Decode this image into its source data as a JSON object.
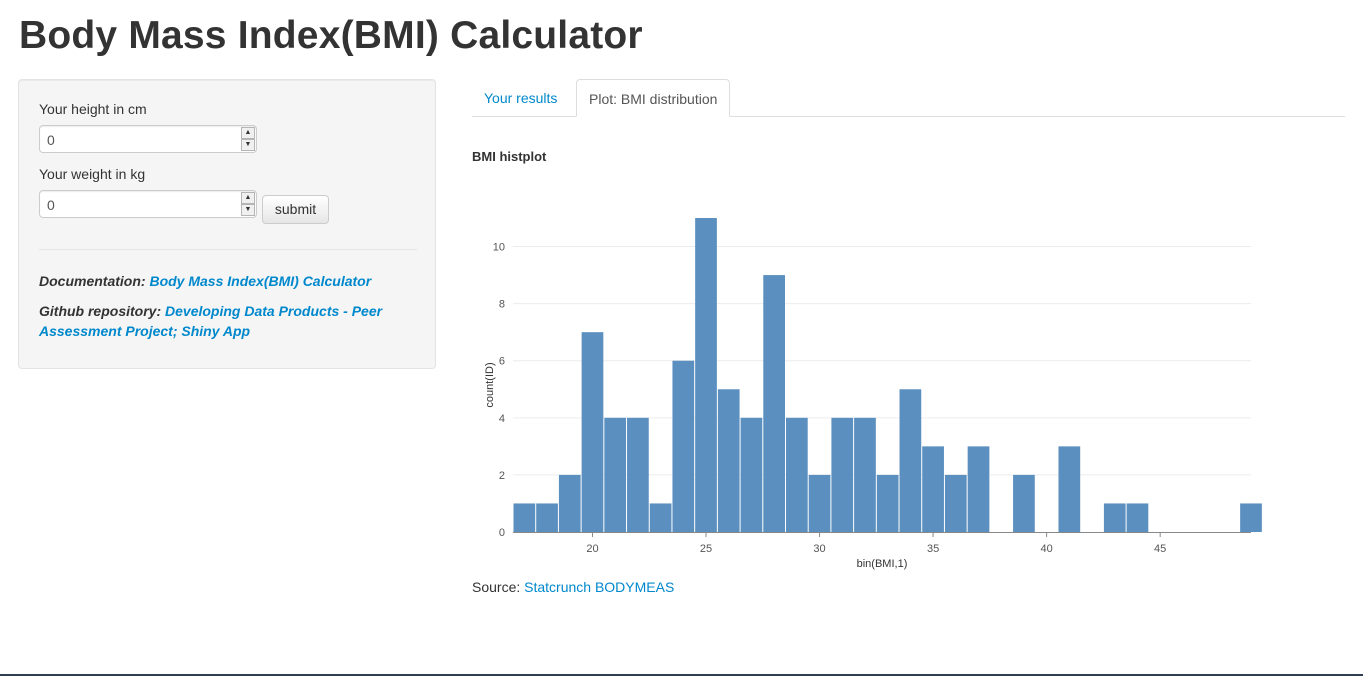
{
  "page": {
    "title": "Body Mass Index(BMI) Calculator"
  },
  "sidebar": {
    "height_label": "Your height in cm",
    "height_value": "0",
    "weight_label": "Your weight in kg",
    "weight_value": "0",
    "submit_label": "submit",
    "doc_prefix": "Documentation:",
    "doc_link": "Body Mass Index(BMI) Calculator",
    "github_prefix": "Github repository:",
    "github_link": "Developing Data Products - Peer Assessment Project; Shiny App"
  },
  "tabs": [
    {
      "label": "Your results",
      "active": false
    },
    {
      "label": "Plot: BMI distribution",
      "active": true
    }
  ],
  "plot": {
    "title": "BMI histplot",
    "source_prefix": "Source:",
    "source_link": "Statcrunch BODYMEAS"
  },
  "chart_data": {
    "type": "bar",
    "xlabel": "bin(BMI,1)",
    "ylabel": "count(ID)",
    "xlim": [
      16.5,
      49
    ],
    "ylim": [
      0,
      11
    ],
    "xticks": [
      20,
      25,
      30,
      35,
      40,
      45
    ],
    "yticks": [
      0,
      2,
      4,
      6,
      8,
      10
    ],
    "bar_color": "#5a8fbf",
    "grid": true,
    "bins": [
      {
        "x": 17,
        "count": 1
      },
      {
        "x": 18,
        "count": 1
      },
      {
        "x": 19,
        "count": 2
      },
      {
        "x": 20,
        "count": 7
      },
      {
        "x": 21,
        "count": 4
      },
      {
        "x": 22,
        "count": 4
      },
      {
        "x": 23,
        "count": 1
      },
      {
        "x": 24,
        "count": 6
      },
      {
        "x": 25,
        "count": 11
      },
      {
        "x": 26,
        "count": 5
      },
      {
        "x": 27,
        "count": 4
      },
      {
        "x": 28,
        "count": 9
      },
      {
        "x": 29,
        "count": 4
      },
      {
        "x": 30,
        "count": 2
      },
      {
        "x": 31,
        "count": 4
      },
      {
        "x": 32,
        "count": 4
      },
      {
        "x": 33,
        "count": 2
      },
      {
        "x": 34,
        "count": 5
      },
      {
        "x": 35,
        "count": 3
      },
      {
        "x": 36,
        "count": 2
      },
      {
        "x": 37,
        "count": 3
      },
      {
        "x": 39,
        "count": 2
      },
      {
        "x": 41,
        "count": 3
      },
      {
        "x": 43,
        "count": 1
      },
      {
        "x": 44,
        "count": 1
      },
      {
        "x": 49,
        "count": 1
      }
    ]
  }
}
